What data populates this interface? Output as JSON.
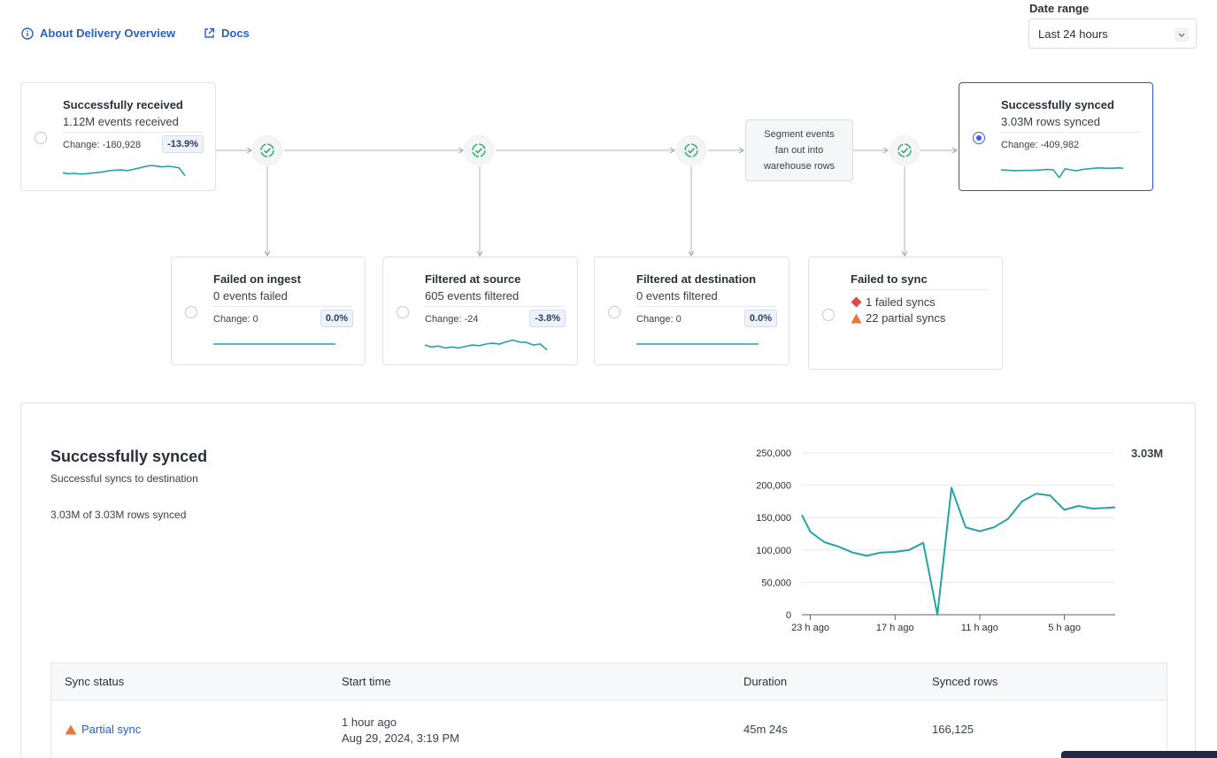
{
  "top_links": {
    "about_label": "About Delivery Overview",
    "docs_label": "Docs"
  },
  "date_range": {
    "label": "Date range",
    "value": "Last 24 hours"
  },
  "flow": {
    "received": {
      "title": "Successfully received",
      "subtitle": "1.12M events received",
      "change": "Change: -180,928",
      "badge": "-13.9%",
      "sparkline": [
        0.35,
        0.3,
        0.32,
        0.28,
        0.3,
        0.33,
        0.36,
        0.4,
        0.45,
        0.48,
        0.5,
        0.46,
        0.52,
        0.58,
        0.66,
        0.72,
        0.7,
        0.65,
        0.68,
        0.66,
        0.6,
        0.2
      ]
    },
    "failed_ingest": {
      "title": "Failed on ingest",
      "subtitle": "0 events failed",
      "change": "Change: 0",
      "badge": "0.0%",
      "sparkline": [
        0.5,
        0.5,
        0.5,
        0.5,
        0.5,
        0.5,
        0.5,
        0.5,
        0.5,
        0.5
      ]
    },
    "filtered_source": {
      "title": "Filtered at source",
      "subtitle": "605 events filtered",
      "change": "Change: -24",
      "badge": "-3.8%",
      "sparkline": [
        0.45,
        0.35,
        0.4,
        0.3,
        0.35,
        0.3,
        0.38,
        0.45,
        0.42,
        0.5,
        0.55,
        0.5,
        0.62,
        0.7,
        0.6,
        0.58,
        0.45,
        0.5,
        0.2
      ]
    },
    "filtered_destination": {
      "title": "Filtered at destination",
      "subtitle": "0 events filtered",
      "change": "Change: 0",
      "badge": "0.0%",
      "sparkline": [
        0.5,
        0.5,
        0.5,
        0.5,
        0.5,
        0.5,
        0.5,
        0.5,
        0.5,
        0.5
      ]
    },
    "fanout_note": {
      "line1": "Segment events",
      "line2": "fan out into",
      "line3": "warehouse rows"
    },
    "failed_sync": {
      "title": "Failed to sync",
      "failed_syncs": "1 failed syncs",
      "partial_syncs": "22 partial syncs",
      "failed_color": "#e04848",
      "partial_color": "#e8793c"
    },
    "synced": {
      "title": "Successfully synced",
      "subtitle": "3.03M rows synced",
      "change": "Change: -409,982",
      "sparkline": [
        0.5,
        0.48,
        0.46,
        0.46,
        0.47,
        0.47,
        0.48,
        0.5,
        0.52,
        0.5,
        0.1,
        0.55,
        0.5,
        0.45,
        0.52,
        0.55,
        0.58,
        0.6,
        0.58,
        0.58,
        0.6,
        0.58
      ]
    }
  },
  "panel": {
    "title": "Successfully synced",
    "subtitle": "Successful syncs to destination",
    "summary": "3.03M of 3.03M rows synced",
    "total_label": "3.03M"
  },
  "chart_data": {
    "type": "line",
    "title": "",
    "xlabel": "",
    "ylabel": "",
    "ylim": [
      0,
      250000
    ],
    "yticks": [
      0,
      50000,
      100000,
      150000,
      200000,
      250000
    ],
    "ytick_labels": [
      "0",
      "50,000",
      "100,000",
      "150,000",
      "200,000",
      "250,000"
    ],
    "xticks": [
      23,
      17,
      11,
      5
    ],
    "xtick_labels": [
      "23 h ago",
      "17 h ago",
      "11 h ago",
      "5 h ago"
    ],
    "xlim": [
      23.6,
      1.4
    ],
    "grid": true,
    "color": "#23a3a8",
    "series": [
      {
        "x": [
          23.6,
          23,
          22,
          21,
          20,
          19,
          18,
          17,
          16,
          15,
          14,
          13,
          12,
          11,
          10,
          9,
          8,
          7,
          6,
          5,
          4,
          3,
          2,
          1.4
        ],
        "values": [
          154000,
          128000,
          112000,
          105000,
          96000,
          91000,
          96000,
          97000,
          100000,
          111000,
          0,
          196000,
          135000,
          129000,
          135000,
          148000,
          175000,
          187000,
          184000,
          162000,
          168000,
          164000,
          165000,
          166000
        ]
      }
    ]
  },
  "table": {
    "headers": [
      "Sync status",
      "Start time",
      "Duration",
      "Synced rows"
    ],
    "rows": [
      {
        "status": "Partial sync",
        "start_relative": "1 hour ago",
        "start_absolute": "Aug 29, 2024, 3:19 PM",
        "duration": "45m 24s",
        "synced_rows": "166,125"
      }
    ]
  }
}
